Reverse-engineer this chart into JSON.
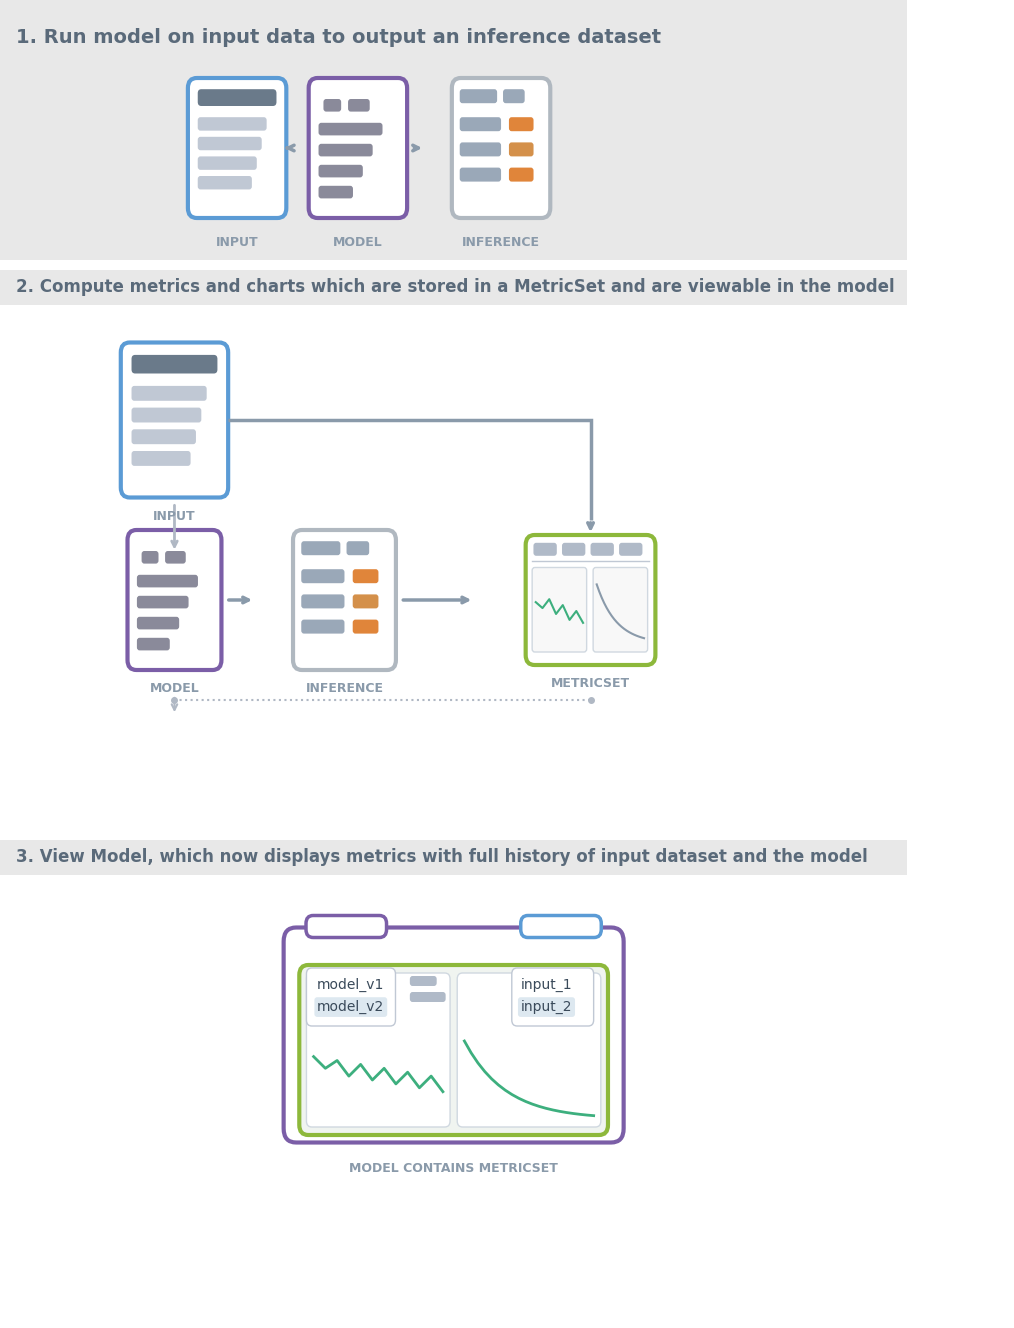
{
  "bg_color": "#f0f0f0",
  "white": "#ffffff",
  "section_bg": "#e8e8e8",
  "blue_border": "#5b9bd5",
  "purple_border": "#7b5ea7",
  "green_border": "#8db83b",
  "gray_border": "#b0b8c0",
  "gray_fill": "#c8d0d8",
  "orange_accent": "#e0853a",
  "green_line": "#3daf7e",
  "dark_text": "#5a6a7a",
  "arrow_color": "#8a9aaa",
  "section1_title": "1. Run model on input data to output an inference dataset",
  "section2_title": "2. Compute metrics and charts which are stored in a MetricSet and are viewable in the model",
  "section3_title": "3. View Model, which now displays metrics with full history of input dataset and the model",
  "label_input": "INPUT",
  "label_model": "MODEL",
  "label_inference": "INFERENCE",
  "label_metricset": "METRICSET",
  "label_model_contains": "MODEL CONTAINS METRICSET",
  "label_model_v1": "model_v1",
  "label_model_v2": "model_v2",
  "label_input_1": "input_1",
  "label_input_2": "input_2"
}
